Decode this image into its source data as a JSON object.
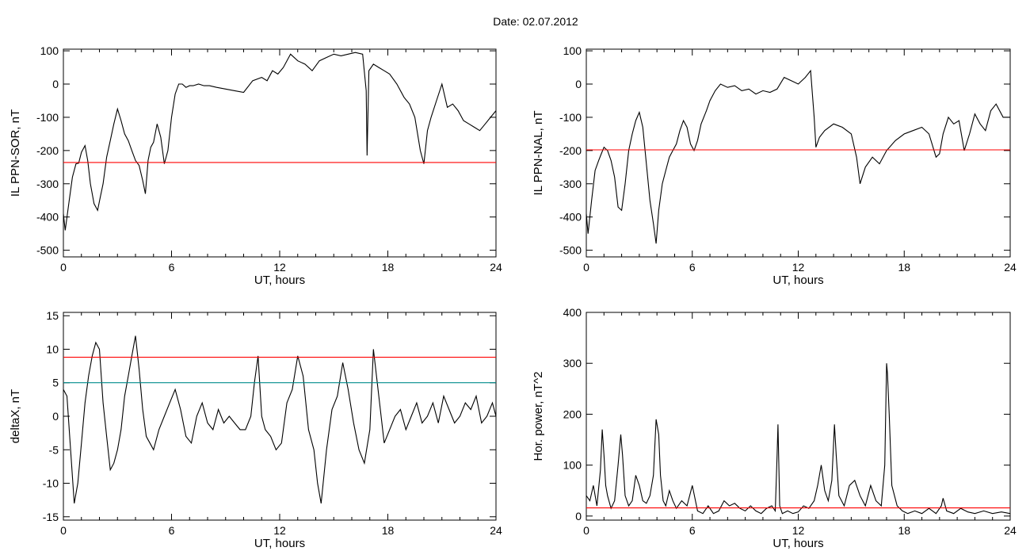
{
  "page": {
    "title": "Date:  02.07.2012"
  },
  "colors": {
    "line": "#000000",
    "threshold": "#ff0000",
    "secondary": "#008b8b",
    "highlight": "#1a5fd0",
    "marker_red": "#ff0000",
    "marker_green": "#22bb22",
    "marker_blue": "#1a5fd0"
  },
  "chart_data": [
    {
      "type": "line",
      "ylabel": "IL PPN-SOR, nT",
      "xlabel": "UT, hours",
      "xlim": [
        0,
        24
      ],
      "ylim": [
        -520,
        105
      ],
      "xticks": [
        0,
        6,
        12,
        18,
        24
      ],
      "yticks": [
        -500,
        -400,
        -300,
        -200,
        -100,
        0,
        100
      ],
      "series": [
        {
          "role": "signal",
          "x": [
            0,
            0.1,
            0.3,
            0.5,
            0.7,
            0.85,
            1.0,
            1.2,
            1.35,
            1.5,
            1.7,
            1.9,
            2.05,
            2.2,
            2.4,
            2.6,
            2.8,
            3.0,
            3.2,
            3.4,
            3.6,
            3.8,
            4.0,
            4.2,
            4.4,
            4.55,
            4.7,
            4.85,
            5.0,
            5.2,
            5.4,
            5.6,
            5.8,
            6.0,
            6.2,
            6.4,
            6.6,
            6.8,
            7.0,
            7.2,
            7.5,
            7.8,
            8.1,
            8.5,
            9.0,
            9.5,
            10.0,
            10.5,
            11.0,
            11.3,
            11.6,
            11.9,
            12.2,
            12.6,
            13.0,
            13.4,
            13.8,
            14.2,
            14.6,
            15.0,
            15.4,
            15.8,
            16.2,
            16.6,
            16.8,
            16.85,
            16.95,
            17.2,
            17.5,
            17.8,
            18.1,
            18.5,
            18.9,
            19.2,
            19.5,
            19.8,
            20.0,
            20.2,
            20.4,
            20.7,
            21.0,
            21.3,
            21.6,
            21.9,
            22.2,
            22.5,
            22.8,
            23.1,
            23.4,
            23.7,
            24
          ],
          "y": [
            -390,
            -440,
            -360,
            -280,
            -240,
            -238,
            -205,
            -185,
            -230,
            -300,
            -360,
            -380,
            -340,
            -300,
            -220,
            -170,
            -120,
            -75,
            -110,
            -150,
            -170,
            -200,
            -230,
            -245,
            -290,
            -330,
            -230,
            -190,
            -175,
            -120,
            -160,
            -240,
            -200,
            -100,
            -30,
            0,
            0,
            -10,
            -5,
            -5,
            0,
            -5,
            -5,
            -10,
            -15,
            -20,
            -25,
            10,
            20,
            10,
            40,
            30,
            50,
            90,
            70,
            60,
            40,
            70,
            80,
            90,
            85,
            90,
            95,
            90,
            -20,
            -215,
            40,
            60,
            50,
            40,
            30,
            0,
            -40,
            -60,
            -100,
            -200,
            -240,
            -140,
            -100,
            -50,
            0,
            -70,
            -60,
            -80,
            -110,
            -120,
            -130,
            -140,
            -120,
            -100,
            -80
          ]
        },
        {
          "role": "threshold",
          "x": [
            0,
            24
          ],
          "y": [
            -236,
            -236
          ]
        }
      ]
    },
    {
      "type": "line",
      "ylabel": "IL PPN-NAL, nT",
      "xlabel": "UT, hours",
      "xlim": [
        0,
        24
      ],
      "ylim": [
        -520,
        105
      ],
      "xticks": [
        0,
        6,
        12,
        18,
        24
      ],
      "yticks": [
        -500,
        -400,
        -300,
        -200,
        -100,
        0,
        100
      ],
      "series": [
        {
          "role": "signal",
          "x": [
            0,
            0.1,
            0.3,
            0.5,
            0.7,
            0.85,
            1.0,
            1.2,
            1.4,
            1.6,
            1.8,
            2.0,
            2.2,
            2.4,
            2.6,
            2.8,
            3.0,
            3.2,
            3.4,
            3.6,
            3.8,
            3.95,
            4.1,
            4.3,
            4.5,
            4.7,
            4.9,
            5.1,
            5.3,
            5.5,
            5.7,
            5.9,
            6.1,
            6.3,
            6.5,
            6.8,
            7.0,
            7.3,
            7.6,
            8.0,
            8.4,
            8.8,
            9.2,
            9.6,
            10.0,
            10.4,
            10.8,
            11.2,
            11.6,
            12.0,
            12.4,
            12.7,
            12.9,
            13.0,
            13.2,
            13.5,
            14.0,
            14.5,
            15.0,
            15.3,
            15.5,
            15.8,
            16.2,
            16.6,
            17.0,
            17.5,
            18.0,
            18.5,
            19.0,
            19.4,
            19.8,
            20.0,
            20.2,
            20.5,
            20.8,
            21.1,
            21.4,
            21.7,
            22.0,
            22.3,
            22.6,
            22.9,
            23.2,
            23.6,
            24
          ],
          "y": [
            -390,
            -450,
            -350,
            -260,
            -230,
            -210,
            -190,
            -200,
            -230,
            -280,
            -370,
            -380,
            -300,
            -200,
            -150,
            -110,
            -85,
            -130,
            -240,
            -350,
            -420,
            -480,
            -380,
            -300,
            -260,
            -220,
            -200,
            -180,
            -140,
            -110,
            -130,
            -180,
            -200,
            -170,
            -120,
            -80,
            -50,
            -20,
            0,
            -10,
            -5,
            -20,
            -15,
            -30,
            -20,
            -25,
            -15,
            20,
            10,
            0,
            20,
            40,
            -100,
            -190,
            -160,
            -140,
            -120,
            -130,
            -150,
            -220,
            -300,
            -250,
            -220,
            -240,
            -200,
            -170,
            -150,
            -140,
            -130,
            -150,
            -220,
            -210,
            -150,
            -100,
            -120,
            -110,
            -200,
            -150,
            -90,
            -120,
            -140,
            -80,
            -60,
            -100,
            -100
          ]
        },
        {
          "role": "threshold",
          "x": [
            0,
            24
          ],
          "y": [
            -198,
            -198
          ]
        }
      ]
    },
    {
      "type": "line",
      "ylabel": "deltaX, nT",
      "xlabel": "UT, hours",
      "xlim": [
        0,
        24
      ],
      "ylim": [
        -15.5,
        15.5
      ],
      "xticks": [
        0,
        6,
        12,
        18,
        24
      ],
      "yticks": [
        -15,
        -10,
        -5,
        0,
        5,
        10,
        15
      ],
      "series": [
        {
          "role": "signal",
          "x": [
            0,
            0.2,
            0.4,
            0.6,
            0.8,
            1.0,
            1.2,
            1.4,
            1.6,
            1.8,
            2.0,
            2.2,
            2.4,
            2.6,
            2.8,
            3.0,
            3.2,
            3.4,
            3.6,
            3.8,
            4.0,
            4.2,
            4.4,
            4.6,
            4.8,
            5.0,
            5.3,
            5.6,
            5.9,
            6.2,
            6.5,
            6.8,
            7.1,
            7.4,
            7.7,
            8.0,
            8.3,
            8.6,
            8.9,
            9.2,
            9.5,
            9.8,
            10.1,
            10.4,
            10.6,
            10.8,
            11.0,
            11.2,
            11.5,
            11.8,
            12.1,
            12.4,
            12.7,
            13.0,
            13.3,
            13.6,
            13.9,
            14.1,
            14.3,
            14.6,
            14.9,
            15.2,
            15.5,
            15.8,
            16.1,
            16.4,
            16.7,
            17.0,
            17.2,
            17.5,
            17.8,
            18.1,
            18.4,
            18.7,
            19.0,
            19.3,
            19.6,
            19.9,
            20.2,
            20.5,
            20.8,
            21.1,
            21.4,
            21.7,
            22.0,
            22.3,
            22.6,
            22.9,
            23.2,
            23.5,
            23.8,
            24
          ],
          "y": [
            4,
            3,
            -5,
            -13,
            -10,
            -4,
            2,
            6,
            9,
            11,
            10,
            2,
            -3,
            -8,
            -7,
            -5,
            -2,
            3,
            6,
            9,
            12,
            7,
            1,
            -3,
            -4,
            -5,
            -2,
            0,
            2,
            4,
            1,
            -3,
            -4,
            0,
            2,
            -1,
            -2,
            1,
            -1,
            0,
            -1,
            -2,
            -2,
            0,
            5,
            9,
            0,
            -2,
            -3,
            -5,
            -4,
            2,
            4,
            9,
            6,
            -2,
            -5,
            -10,
            -13,
            -5,
            1,
            3,
            8,
            4,
            -1,
            -5,
            -7,
            -2,
            10,
            3,
            -4,
            -2,
            0,
            1,
            -2,
            0,
            2,
            -1,
            0,
            2,
            -1,
            3,
            1,
            -1,
            0,
            2,
            1,
            3,
            -1,
            0,
            2,
            0
          ]
        },
        {
          "role": "threshold",
          "x": [
            0,
            24
          ],
          "y": [
            8.8,
            8.8
          ]
        },
        {
          "role": "secondary",
          "x": [
            0,
            24
          ],
          "y": [
            5,
            5
          ]
        }
      ]
    },
    {
      "type": "line",
      "ylabel": "Hor. power, nT^2",
      "xlabel": "UT, hours",
      "xlim": [
        0,
        24
      ],
      "ylim": [
        -8,
        400
      ],
      "xticks": [
        0,
        6,
        12,
        18,
        24
      ],
      "yticks": [
        0,
        100,
        200,
        300,
        400
      ],
      "series": [
        {
          "role": "signal",
          "x": [
            0,
            0.2,
            0.4,
            0.6,
            0.8,
            0.9,
            1.0,
            1.1,
            1.2,
            1.4,
            1.6,
            1.8,
            1.95,
            2.05,
            2.2,
            2.4,
            2.6,
            2.8,
            3.0,
            3.2,
            3.4,
            3.6,
            3.8,
            3.95,
            4.1,
            4.2,
            4.35,
            4.5,
            4.7,
            4.9,
            5.1,
            5.4,
            5.7,
            6.0,
            6.3,
            6.6,
            6.9,
            7.2,
            7.5,
            7.8,
            8.1,
            8.4,
            8.7,
            9.0,
            9.3,
            9.6,
            9.9,
            10.2,
            10.5,
            10.7,
            10.8,
            10.85,
            10.95,
            11.1,
            11.4,
            11.7,
            12.0,
            12.3,
            12.6,
            12.9,
            13.1,
            13.3,
            13.5,
            13.7,
            13.9,
            14.05,
            14.15,
            14.3,
            14.6,
            14.9,
            15.2,
            15.5,
            15.8,
            16.1,
            16.4,
            16.7,
            16.9,
            17.0,
            17.05,
            17.15,
            17.3,
            17.6,
            17.9,
            18.2,
            18.6,
            19.0,
            19.4,
            19.8,
            20.1,
            20.2,
            20.4,
            20.8,
            21.2,
            21.6,
            22.0,
            22.5,
            23.0,
            23.5,
            24
          ],
          "y": [
            40,
            30,
            60,
            20,
            90,
            170,
            120,
            60,
            40,
            15,
            30,
            100,
            160,
            120,
            40,
            20,
            30,
            80,
            60,
            30,
            25,
            40,
            80,
            190,
            160,
            80,
            30,
            20,
            50,
            30,
            15,
            30,
            20,
            60,
            10,
            5,
            20,
            5,
            10,
            30,
            20,
            25,
            15,
            10,
            20,
            10,
            5,
            15,
            20,
            10,
            120,
            180,
            20,
            5,
            10,
            5,
            8,
            20,
            15,
            30,
            60,
            100,
            50,
            30,
            70,
            180,
            120,
            40,
            20,
            60,
            70,
            40,
            20,
            60,
            30,
            20,
            100,
            300,
            280,
            200,
            60,
            20,
            10,
            5,
            10,
            5,
            15,
            5,
            20,
            35,
            10,
            5,
            15,
            8,
            5,
            10,
            5,
            8,
            5
          ]
        },
        {
          "role": "threshold",
          "x": [
            0,
            24
          ],
          "y": [
            16,
            16
          ]
        }
      ]
    }
  ]
}
